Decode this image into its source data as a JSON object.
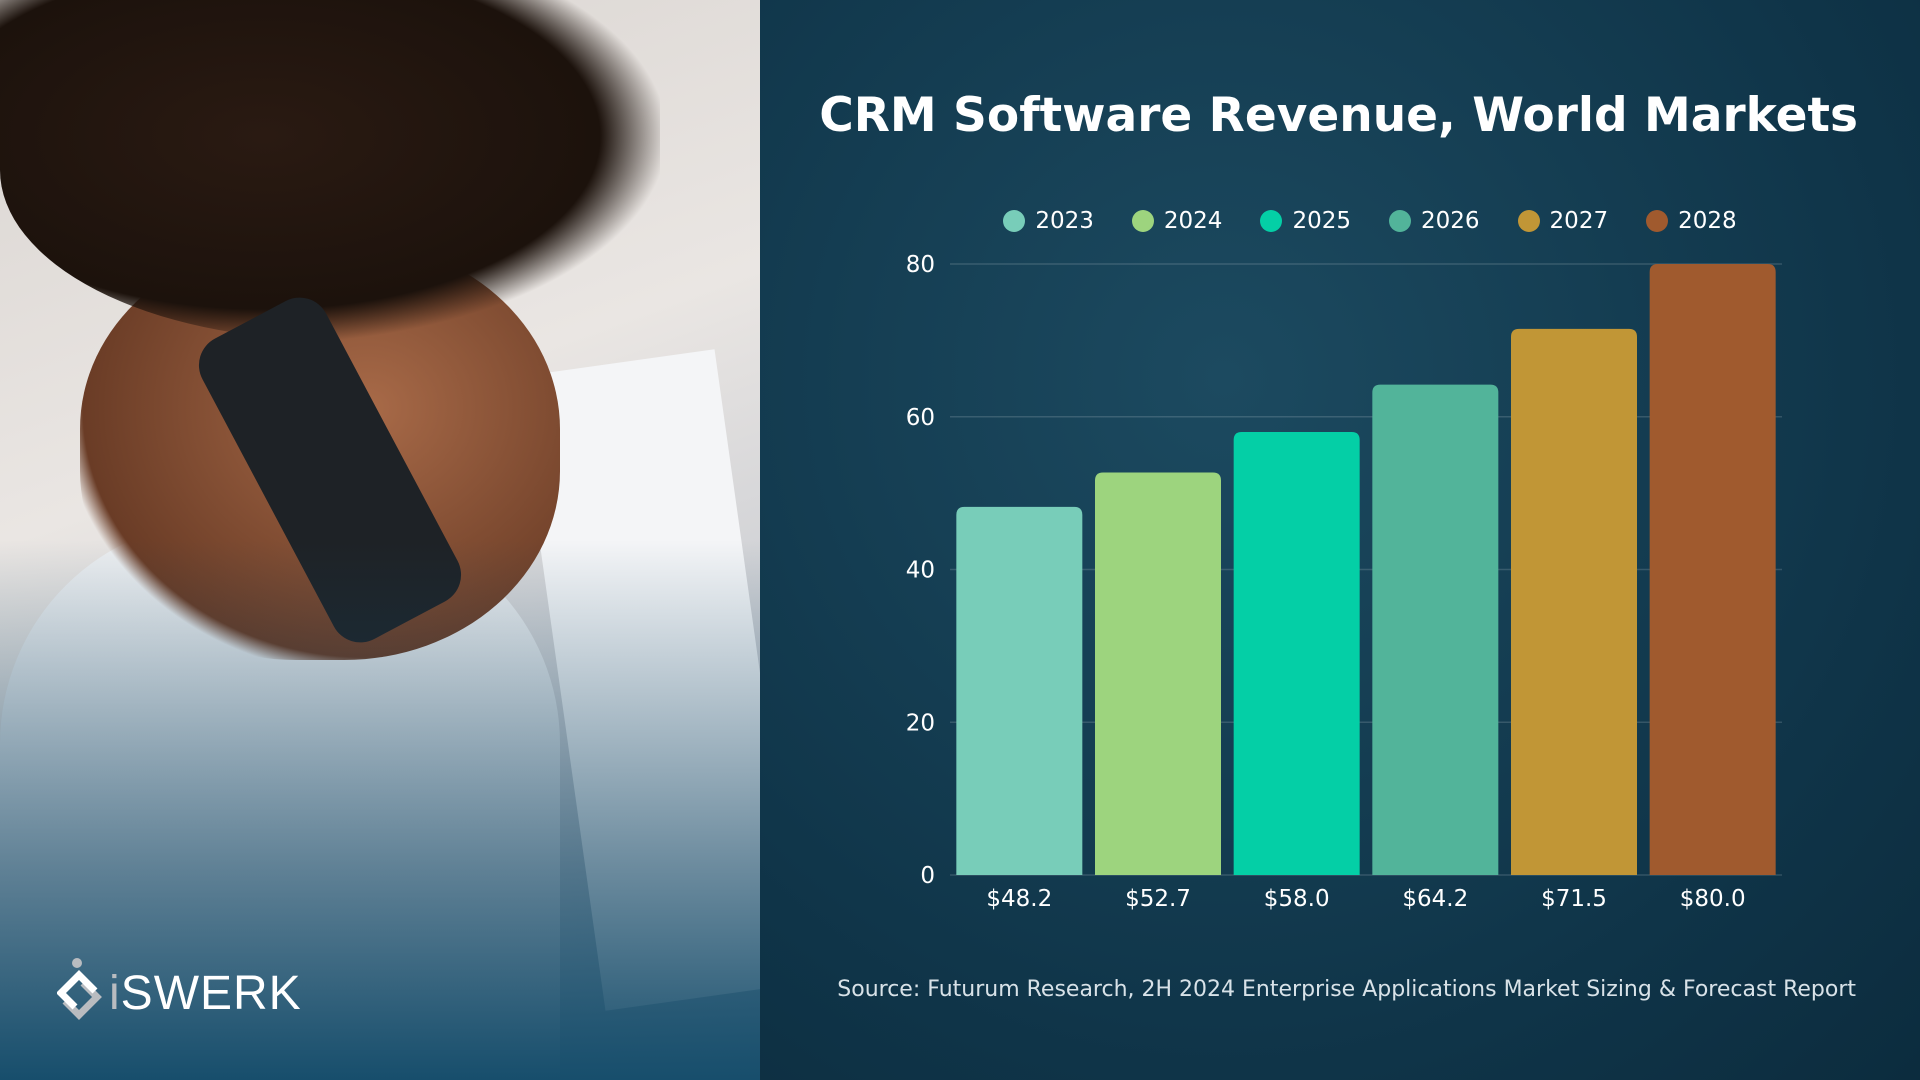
{
  "brand": {
    "logo_text": "iSWERK"
  },
  "chart_data": {
    "type": "bar",
    "title": "CRM Software Revenue, World Markets",
    "categories": [
      "2023",
      "2024",
      "2025",
      "2026",
      "2027",
      "2028"
    ],
    "values": [
      48.2,
      52.7,
      58.0,
      64.2,
      71.5,
      80.0
    ],
    "data_labels": [
      "$48.2",
      "$52.7",
      "$58.0",
      "$64.2",
      "$71.5",
      "$80.0"
    ],
    "colors": [
      "#78cdb9",
      "#9dd47e",
      "#04cfa6",
      "#52b49a",
      "#c19636",
      "#a05a2e"
    ],
    "legend": [
      "2023",
      "2024",
      "2025",
      "2026",
      "2027",
      "2028"
    ],
    "legend_placement": "top",
    "yticks": [
      0,
      20,
      40,
      60,
      80
    ],
    "ylim": [
      0,
      80
    ],
    "grid": true,
    "xlabel": "",
    "ylabel": ""
  },
  "source": "Source: Futurum Research, 2H 2024 Enterprise Applications Market Sizing & Forecast Report"
}
